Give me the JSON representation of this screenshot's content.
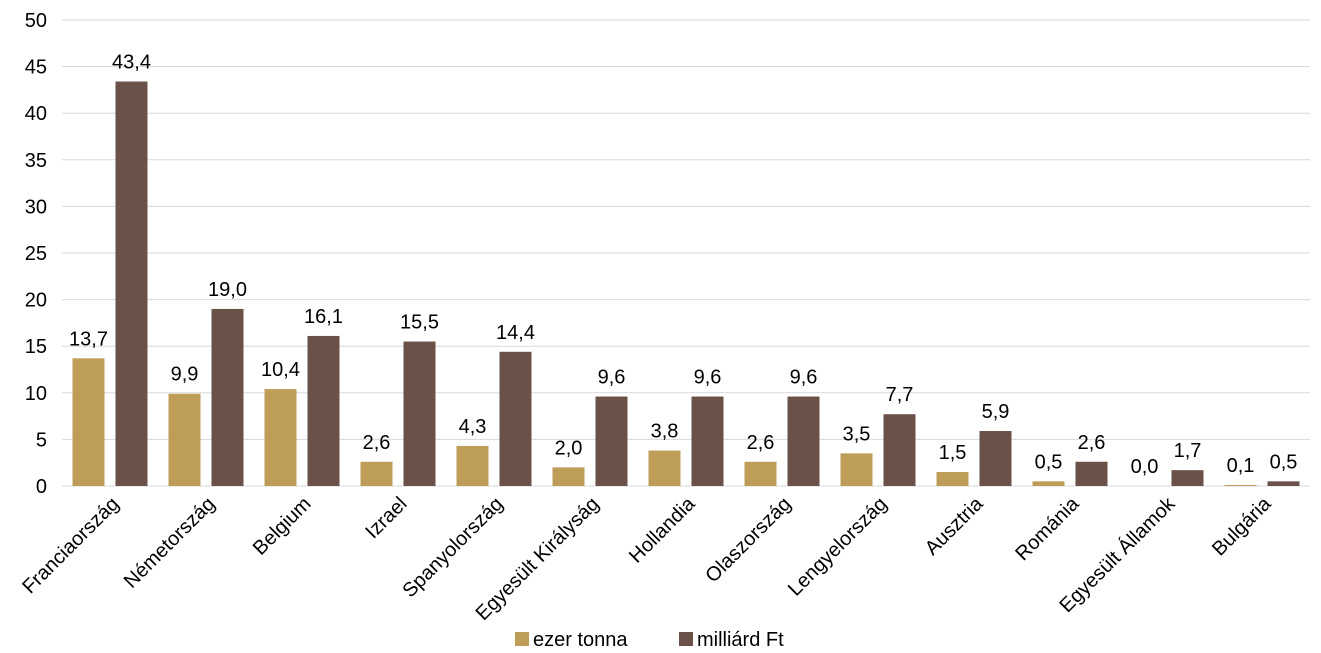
{
  "chart_data": {
    "type": "bar",
    "categories": [
      "Franciaország",
      "Németország",
      "Belgium",
      "Izrael",
      "Spanyolország",
      "Egyesült Királyság",
      "Hollandia",
      "Olaszország",
      "Lengyelország",
      "Ausztria",
      "Románia",
      "Egyesült Államok",
      "Bulgária"
    ],
    "series": [
      {
        "name": "ezer tonna",
        "color": "#bd9d57",
        "values": [
          13.7,
          9.9,
          10.4,
          2.6,
          4.3,
          2.0,
          3.8,
          2.6,
          3.5,
          1.5,
          0.5,
          0.0,
          0.1
        ],
        "labels": [
          "13,7",
          "9,9",
          "10,4",
          "2,6",
          "4,3",
          "2,0",
          "3,8",
          "2,6",
          "3,5",
          "1,5",
          "0,5",
          "0,0",
          "0,1"
        ]
      },
      {
        "name": "milliárd Ft",
        "color": "#6b5249",
        "values": [
          43.4,
          19.0,
          16.1,
          15.5,
          14.4,
          9.6,
          9.6,
          9.6,
          7.7,
          5.9,
          2.6,
          1.7,
          0.5
        ],
        "labels": [
          "43,4",
          "19,0",
          "16,1",
          "15,5",
          "14,4",
          "9,6",
          "9,6",
          "9,6",
          "7,7",
          "5,9",
          "2,6",
          "1,7",
          "0,5"
        ]
      }
    ],
    "ylim": [
      0,
      50
    ],
    "yticks": [
      "0",
      "5",
      "10",
      "15",
      "20",
      "25",
      "30",
      "35",
      "40",
      "45",
      "50"
    ],
    "grid": true,
    "legend": "bottom",
    "title": "",
    "xlabel": "",
    "ylabel": ""
  }
}
